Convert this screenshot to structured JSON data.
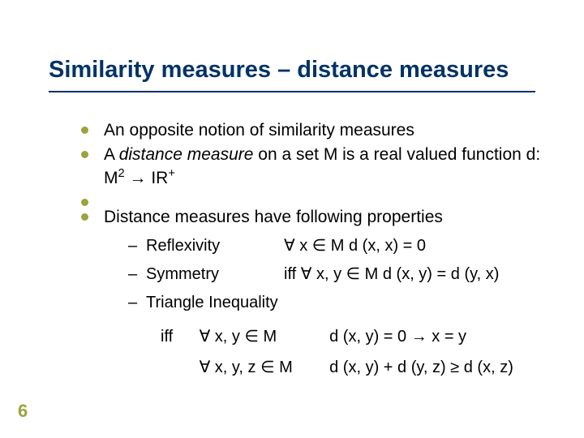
{
  "title": "Similarity measures – distance measures",
  "colors": {
    "accent": "#003366",
    "bullet": "#9ba33a",
    "text": "#000000",
    "background": "#ffffff"
  },
  "typography": {
    "title_fontsize": 29,
    "body_fontsize": 21,
    "sub_fontsize": 20,
    "slideno_fontsize": 22,
    "font_family": "Arial"
  },
  "slide_number": "6",
  "bullets": {
    "b1": "An opposite notion of similarity measures",
    "b2_pre": "A ",
    "b2_em": "distance measure",
    "b2_mid": " on a set M is a real valued function d: M",
    "b2_sup": "2",
    "b2_arrow": " → IR",
    "b2_sup2": "+",
    "b3": "Distance measures have following properties"
  },
  "props": {
    "refl": {
      "name": "Reflexivity",
      "cond": "∀ x ∈ M   d (x, x) = 0"
    },
    "symm": {
      "name": "Symmetry",
      "cond": "iff ∀ x, y ∈ M   d (x, y) = d (y, x)"
    },
    "tri": {
      "name": "Triangle Inequality"
    }
  },
  "iff": {
    "kw": "iff",
    "line1_quant": "∀ x, y ∈ M",
    "line1_rhs": "d (x, y) = 0 → x = y",
    "line2_quant": "∀ x, y, z ∈ M",
    "line2_rhs": "d (x, y) + d (y, z) ≥ d (x, z)"
  }
}
